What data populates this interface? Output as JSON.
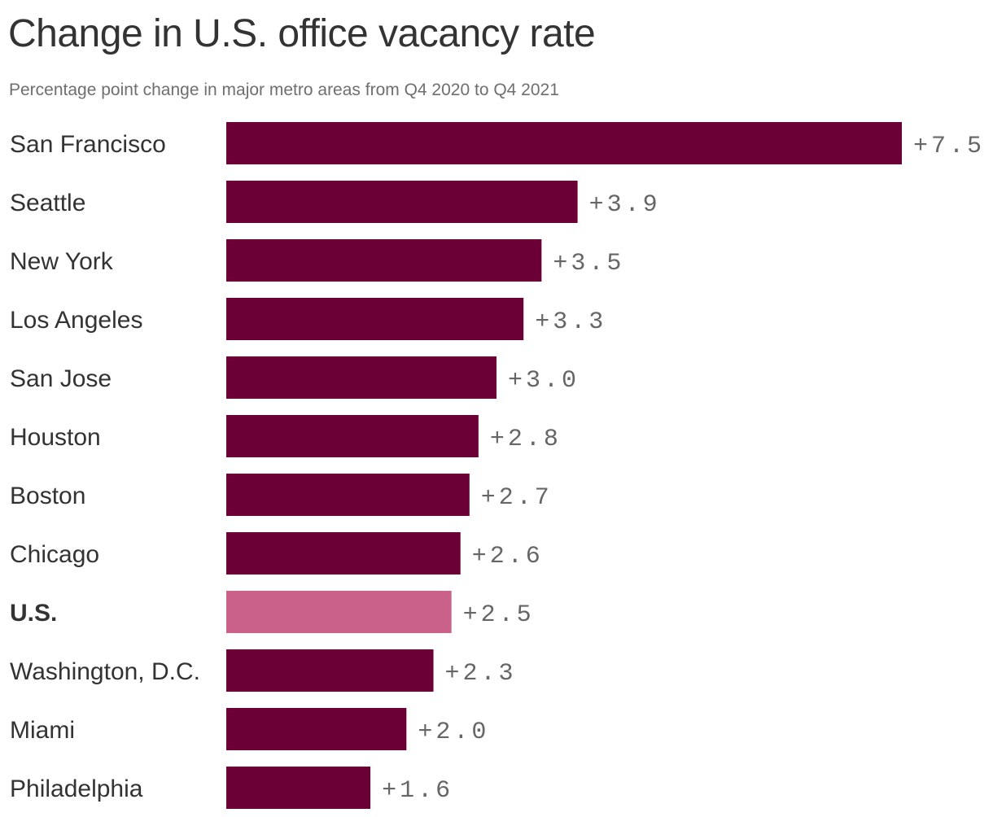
{
  "title": "Change in U.S. office vacancy rate",
  "subtitle": "Percentage point change in major metro areas from Q4 2020 to Q4 2021",
  "colors": {
    "bar": "#6b0036",
    "highlight_bar": "#c96188",
    "title": "#333333",
    "subtitle": "#6f6f6f",
    "value_label": "#666666"
  },
  "chart_data": {
    "type": "bar",
    "orientation": "horizontal",
    "title": "Change in U.S. office vacancy rate",
    "subtitle": "Percentage point change in major metro areas from Q4 2020 to Q4 2021",
    "xlabel": "",
    "ylabel": "",
    "grid": false,
    "categories": [
      "San Francisco",
      "Seattle",
      "New York",
      "Los Angeles",
      "San Jose",
      "Houston",
      "Boston",
      "Chicago",
      "U.S.",
      "Washington, D.C.",
      "Miami",
      "Philadelphia"
    ],
    "values": [
      7.5,
      3.9,
      3.5,
      3.3,
      3.0,
      2.8,
      2.7,
      2.6,
      2.5,
      2.3,
      2.0,
      1.6
    ],
    "value_labels": [
      "+7.5",
      "+3.9",
      "+3.5",
      "+3.3",
      "+3.0",
      "+2.8",
      "+2.7",
      "+2.6",
      "+2.5",
      "+2.3",
      "+2.0",
      "+1.6"
    ],
    "highlight": "U.S.",
    "xlim": [
      0,
      7.5
    ]
  }
}
